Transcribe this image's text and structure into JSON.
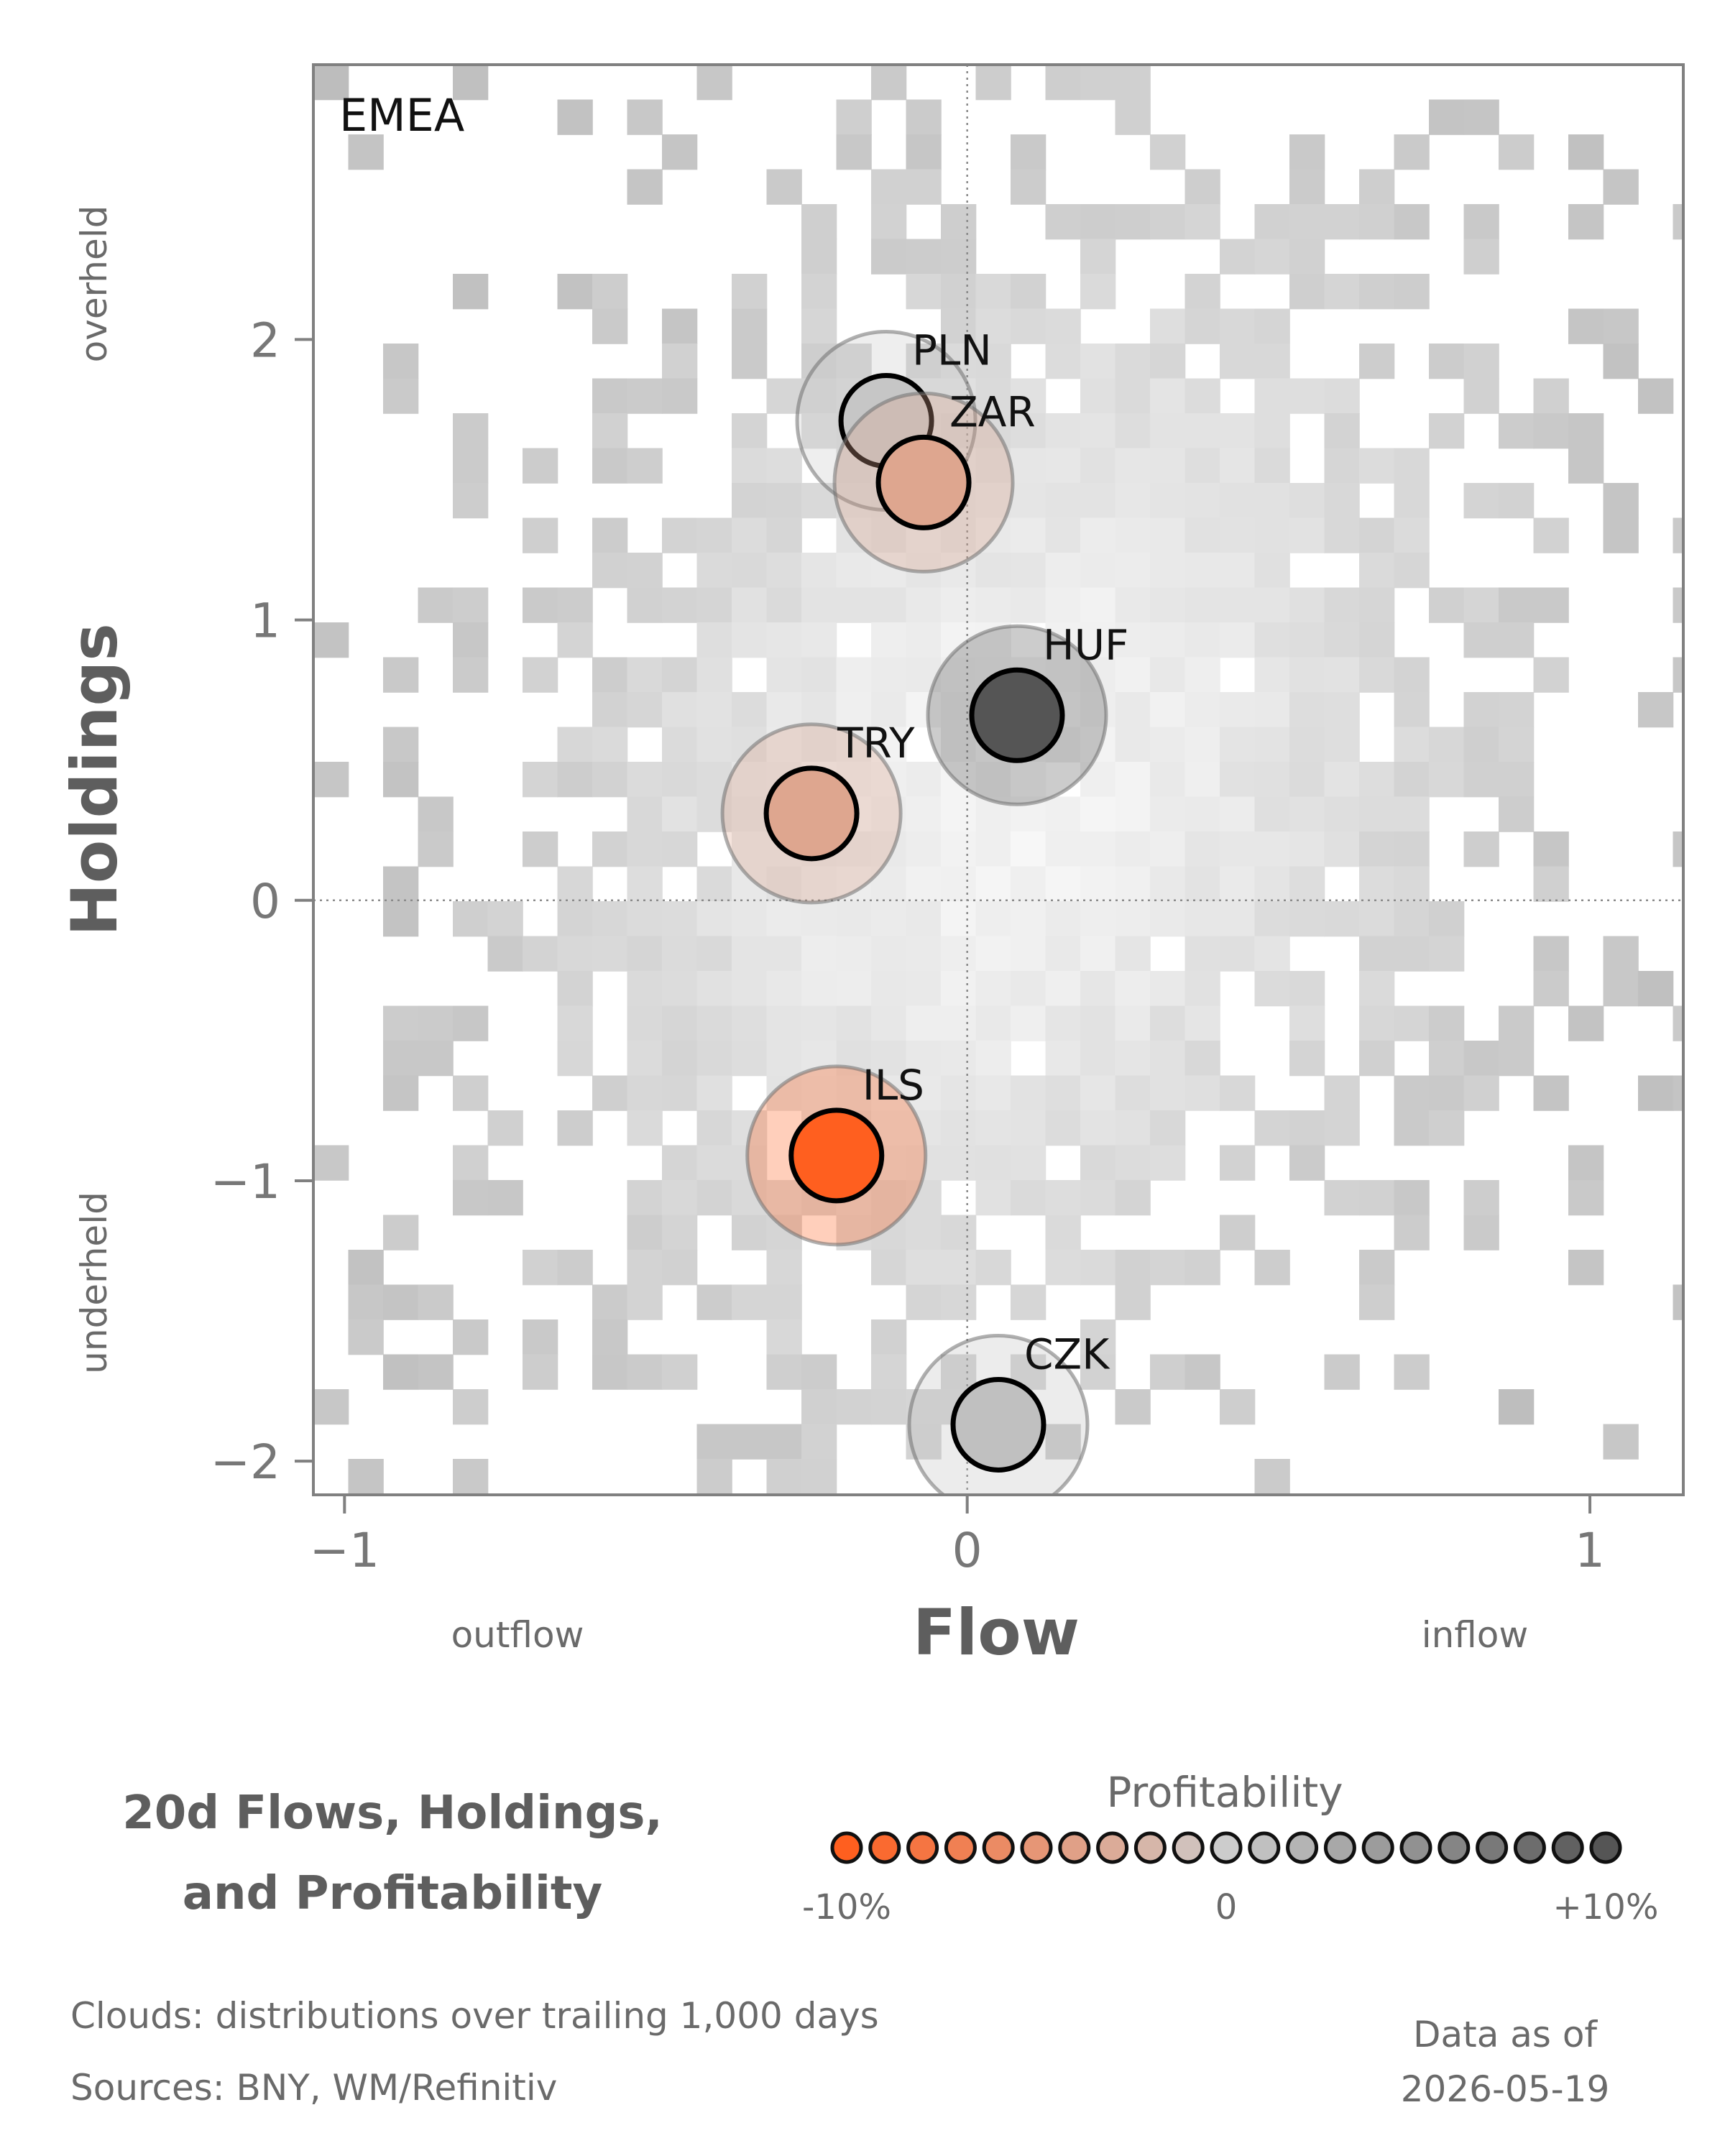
{
  "chart_data": {
    "type": "scatter",
    "panel_label": "EMEA",
    "title_lines": [
      "20d Flows, Holdings,",
      "and Profitability"
    ],
    "xlabel": "Flow",
    "ylabel": "Holdings",
    "x_direction_labels": {
      "negative": "outflow",
      "positive": "inflow"
    },
    "y_direction_labels": {
      "negative": "underheld",
      "positive": "overheld"
    },
    "xlim": [
      -1.05,
      1.15
    ],
    "ylim": [
      -2.12,
      2.98
    ],
    "x_ticks": [
      {
        "value": -1,
        "label": "−1"
      },
      {
        "value": 0,
        "label": "0"
      },
      {
        "value": 1,
        "label": "1"
      }
    ],
    "y_ticks": [
      {
        "value": -2,
        "label": "−2"
      },
      {
        "value": -1,
        "label": "−1"
      },
      {
        "value": 0,
        "label": "0"
      },
      {
        "value": 1,
        "label": "1"
      },
      {
        "value": 2,
        "label": "2"
      }
    ],
    "points": [
      {
        "label": "PLN",
        "flow": -0.13,
        "holdings": 1.71,
        "profitability": 0.5
      },
      {
        "label": "ZAR",
        "flow": -0.07,
        "holdings": 1.49,
        "profitability": -3.5
      },
      {
        "label": "HUF",
        "flow": 0.08,
        "holdings": 0.66,
        "profitability": 10
      },
      {
        "label": "TRY",
        "flow": -0.25,
        "holdings": 0.31,
        "profitability": -3.5
      },
      {
        "label": "ILS",
        "flow": -0.21,
        "holdings": -0.91,
        "profitability": -10
      },
      {
        "label": "CZK",
        "flow": 0.05,
        "holdings": -1.87,
        "profitability": 1
      }
    ],
    "legend": {
      "title": "Profitability",
      "min_label": "-10%",
      "mid_label": "0",
      "max_label": "+10%",
      "range": [
        -10,
        10
      ],
      "negative_color": "#ff5f1f",
      "neutral_color": "#cccccc",
      "positive_color": "#555555"
    },
    "background": "density cloud of trailing 1,000 days",
    "footnotes": {
      "clouds": "Clouds:  distributions over trailing 1,000 days",
      "sources": "Sources:  BNY, WM/Refinitiv"
    },
    "data_as_of": {
      "line1": "Data as of",
      "line2": "2026-05-19"
    }
  }
}
